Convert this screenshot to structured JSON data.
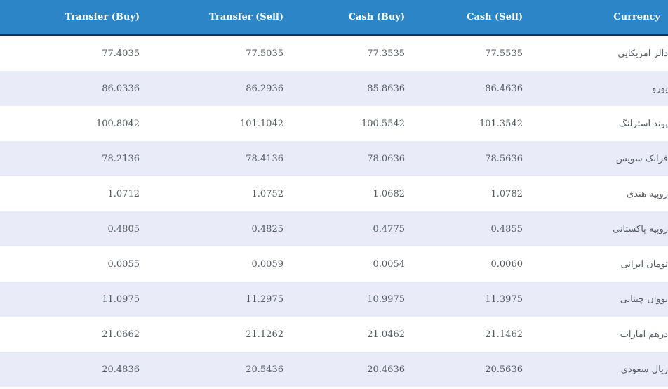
{
  "columns": {
    "transfer_buy": "Transfer (Buy)",
    "transfer_sell": "Transfer (Sell)",
    "cash_buy": "Cash (Buy)",
    "cash_sell": "Cash (Sell)",
    "currency": "Currency"
  },
  "rows": [
    {
      "transfer_buy": "77.4035",
      "transfer_sell": "77.5035",
      "cash_buy": "77.3535",
      "cash_sell": "77.5535",
      "currency": "دالر امریکایی"
    },
    {
      "transfer_buy": "86.0336",
      "transfer_sell": "86.2936",
      "cash_buy": "85.8636",
      "cash_sell": "86.4636",
      "currency": "یورو"
    },
    {
      "transfer_buy": "100.8042",
      "transfer_sell": "101.1042",
      "cash_buy": "100.5542",
      "cash_sell": "101.3542",
      "currency": "پوند استرلنگ"
    },
    {
      "transfer_buy": "78.2136",
      "transfer_sell": "78.4136",
      "cash_buy": "78.0636",
      "cash_sell": "78.5636",
      "currency": "فرانک سویس"
    },
    {
      "transfer_buy": "1.0712",
      "transfer_sell": "1.0752",
      "cash_buy": "1.0682",
      "cash_sell": "1.0782",
      "currency": "روپیه هندی"
    },
    {
      "transfer_buy": "0.4805",
      "transfer_sell": "0.4825",
      "cash_buy": "0.4775",
      "cash_sell": "0.4855",
      "currency": "روپیه پاکستانی"
    },
    {
      "transfer_buy": "0.0055",
      "transfer_sell": "0.0059",
      "cash_buy": "0.0054",
      "cash_sell": "0.0060",
      "currency": "تومان ایرانی"
    },
    {
      "transfer_buy": "11.0975",
      "transfer_sell": "11.2975",
      "cash_buy": "10.9975",
      "cash_sell": "11.3975",
      "currency": "یووان چینایی"
    },
    {
      "transfer_buy": "21.0662",
      "transfer_sell": "21.1262",
      "cash_buy": "21.0462",
      "cash_sell": "21.1462",
      "currency": "درهم امارات"
    },
    {
      "transfer_buy": "20.4836",
      "transfer_sell": "20.5436",
      "cash_buy": "20.4636",
      "cash_sell": "20.5636",
      "currency": "ریال سعودی"
    }
  ],
  "colors": {
    "header_bg": "#2b85c6",
    "header_border": "#1f2e3d",
    "row_alt_bg": "#e9ebf8",
    "text": "#555a63"
  }
}
